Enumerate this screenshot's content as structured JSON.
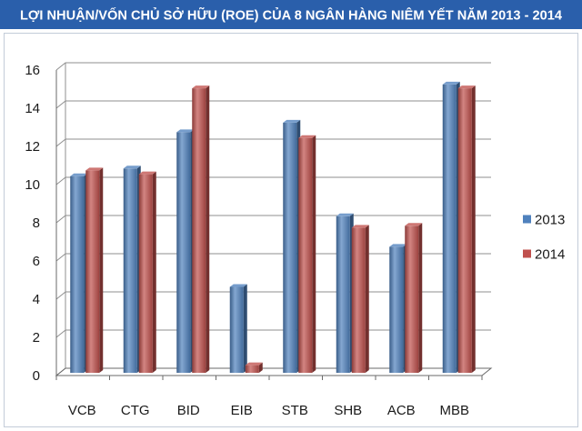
{
  "chart_data": {
    "type": "bar",
    "orientation": "vertical",
    "three_d": true,
    "title": "LỢI NHUẬN/VỐN CHỦ SỞ HỮU (ROE) CỦA 8 NGÂN HÀNG NIÊM YẾT NĂM 2013 - 2014",
    "categories": [
      "VCB",
      "CTG",
      "BID",
      "EIB",
      "STB",
      "SHB",
      "ACB",
      "MBB"
    ],
    "series": [
      {
        "name": "2013",
        "color": "#4f81bd",
        "values": [
          10.3,
          10.7,
          12.6,
          4.5,
          13.1,
          8.2,
          6.6,
          15.1
        ]
      },
      {
        "name": "2014",
        "color": "#c0504d",
        "values": [
          10.6,
          10.4,
          14.9,
          0.4,
          12.3,
          7.6,
          7.7,
          14.9
        ]
      }
    ],
    "ylim": [
      0,
      16
    ],
    "yticks": [
      0,
      2,
      4,
      6,
      8,
      10,
      12,
      14,
      16
    ],
    "grid": true,
    "legend": "right"
  },
  "colors": {
    "title_banner": "#2a5fab",
    "title_text": "#ffffff"
  }
}
